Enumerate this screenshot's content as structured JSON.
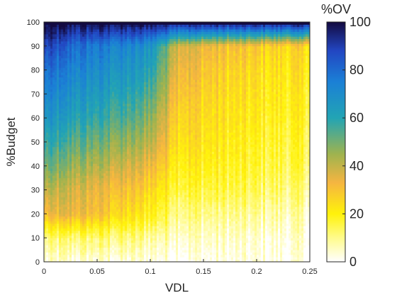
{
  "chart_data": {
    "type": "heatmap",
    "title": "",
    "xlabel": "VDL",
    "ylabel": "%Budget",
    "xlim": [
      0,
      0.25
    ],
    "ylim": [
      0,
      100
    ],
    "x_ticks": [
      0,
      0.05,
      0.1,
      0.15,
      0.2,
      0.25
    ],
    "x_tick_labels": [
      "0",
      "0.05",
      "0.1",
      "0.15",
      "0.2",
      "0.25"
    ],
    "y_ticks": [
      0,
      10,
      20,
      30,
      40,
      50,
      60,
      70,
      80,
      90,
      100
    ],
    "y_tick_labels": [
      "0",
      "10",
      "20",
      "30",
      "40",
      "50",
      "60",
      "70",
      "80",
      "90",
      "100"
    ],
    "colorbar": {
      "title": "%OV",
      "range": [
        0,
        100
      ],
      "ticks": [
        0,
        20,
        40,
        60,
        80,
        100
      ],
      "tick_labels": [
        "0",
        "20",
        "40",
        "60",
        "80",
        "100"
      ],
      "colormap_stops": [
        {
          "value": 0,
          "color": "#ffffff"
        },
        {
          "value": 10,
          "color": "#fffb8c"
        },
        {
          "value": 20,
          "color": "#fff20a"
        },
        {
          "value": 33,
          "color": "#f5b541"
        },
        {
          "value": 45,
          "color": "#9eb34f"
        },
        {
          "value": 60,
          "color": "#22a4b4"
        },
        {
          "value": 75,
          "color": "#1b80d6"
        },
        {
          "value": 88,
          "color": "#2246c2"
        },
        {
          "value": 100,
          "color": "#130a40"
        }
      ]
    },
    "x_samples": [
      0,
      0.025,
      0.05,
      0.075,
      0.1,
      0.125,
      0.15,
      0.175,
      0.2,
      0.225,
      0.25
    ],
    "y_samples": [
      0,
      10,
      20,
      30,
      40,
      50,
      60,
      70,
      80,
      90,
      100
    ],
    "z_grid": [
      [
        2,
        3,
        3,
        2,
        2,
        1,
        1,
        1,
        1,
        1,
        1
      ],
      [
        10,
        12,
        12,
        11,
        9,
        6,
        5,
        4,
        3,
        3,
        3
      ],
      [
        30,
        34,
        30,
        24,
        20,
        12,
        10,
        9,
        8,
        7,
        6
      ],
      [
        40,
        38,
        34,
        30,
        26,
        18,
        16,
        15,
        13,
        12,
        10
      ],
      [
        50,
        46,
        42,
        38,
        34,
        22,
        20,
        18,
        16,
        15,
        14
      ],
      [
        58,
        54,
        50,
        46,
        42,
        26,
        23,
        20,
        18,
        17,
        16
      ],
      [
        66,
        62,
        58,
        54,
        48,
        28,
        25,
        22,
        20,
        19,
        18
      ],
      [
        72,
        68,
        64,
        60,
        55,
        32,
        27,
        24,
        22,
        21,
        20
      ],
      [
        78,
        74,
        70,
        66,
        62,
        36,
        30,
        26,
        24,
        23,
        22
      ],
      [
        88,
        80,
        76,
        72,
        68,
        40,
        34,
        30,
        28,
        26,
        25
      ],
      [
        100,
        100,
        100,
        100,
        100,
        100,
        100,
        100,
        100,
        100,
        100
      ]
    ]
  }
}
